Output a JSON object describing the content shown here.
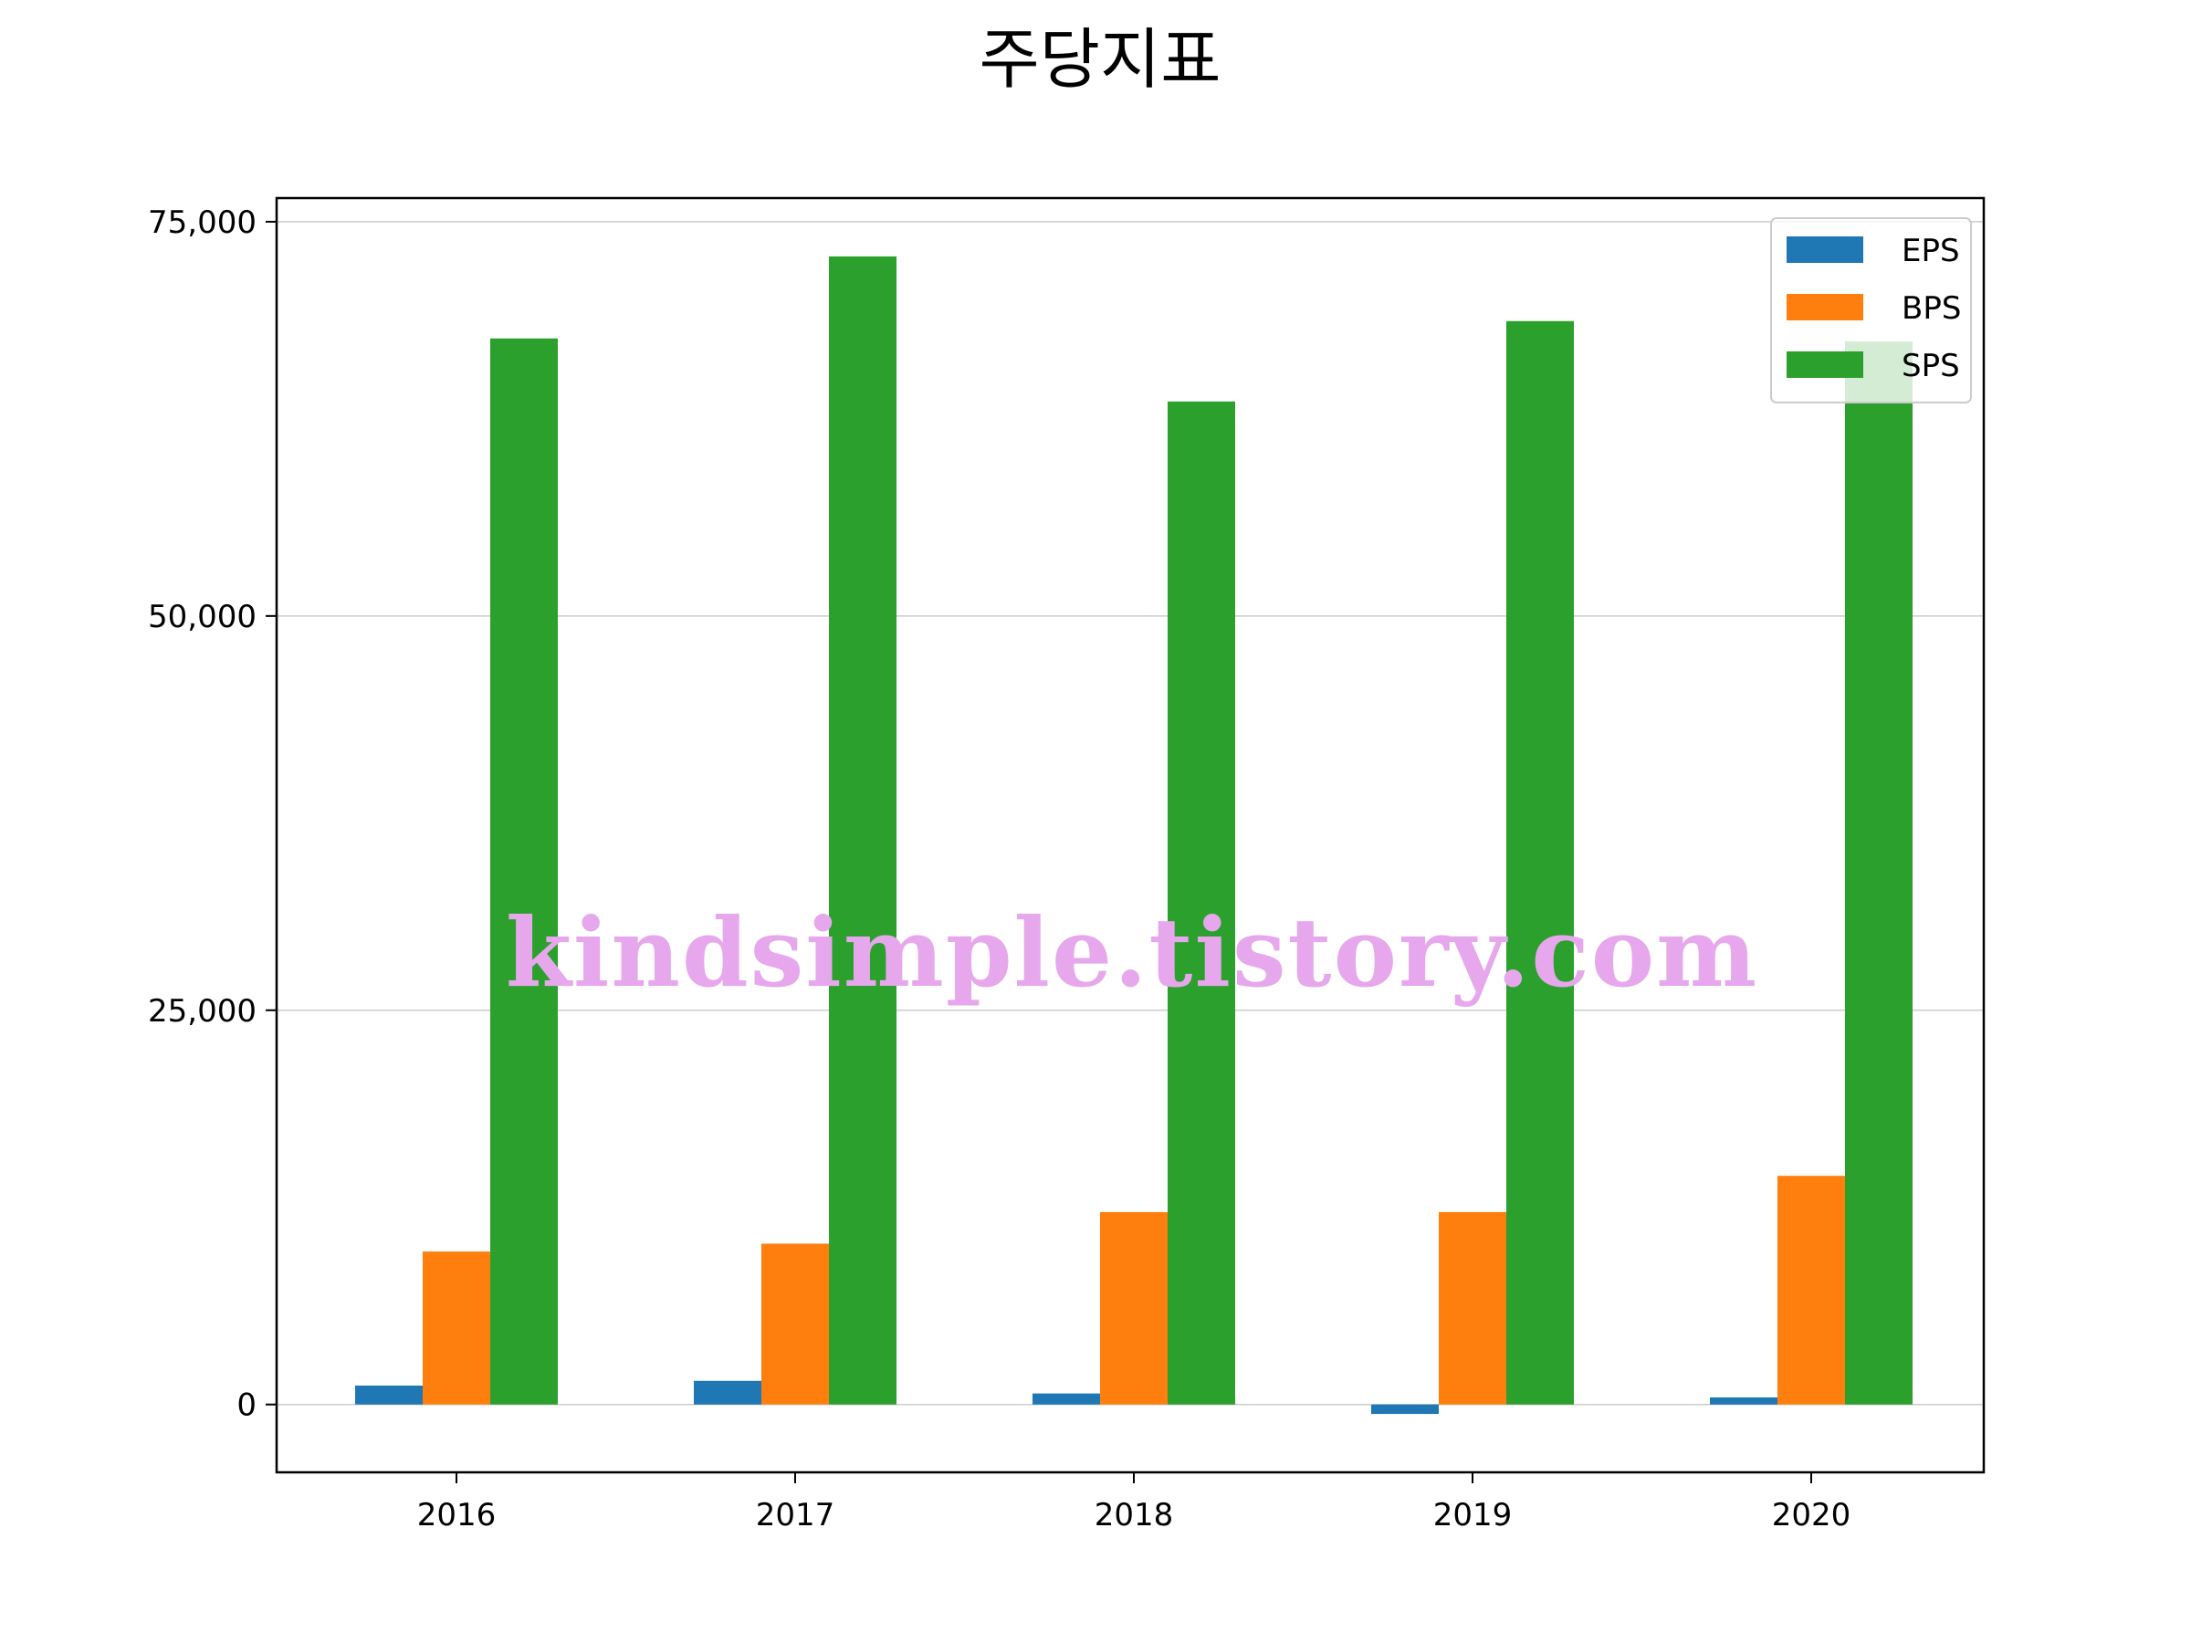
{
  "title": "주당지표",
  "watermark": "kindsimple.tistory.com",
  "chart_data": {
    "type": "bar",
    "categories": [
      "2016",
      "2017",
      "2018",
      "2019",
      "2020"
    ],
    "series": [
      {
        "name": "EPS",
        "color": "#1f77b4",
        "values": [
          1200,
          1500,
          700,
          -600,
          450
        ]
      },
      {
        "name": "BPS",
        "color": "#ff7f0e",
        "values": [
          9700,
          10200,
          12200,
          12200,
          14500
        ]
      },
      {
        "name": "SPS",
        "color": "#2ca02c",
        "values": [
          67600,
          72800,
          63600,
          68700,
          67400
        ]
      }
    ],
    "yticks": [
      0,
      25000,
      50000,
      75000
    ],
    "ytick_labels": [
      "0",
      "25,000",
      "50,000",
      "75,000"
    ],
    "ylim": [
      -4300,
      76500
    ],
    "grid": "horizontal",
    "legend": "top-right"
  }
}
